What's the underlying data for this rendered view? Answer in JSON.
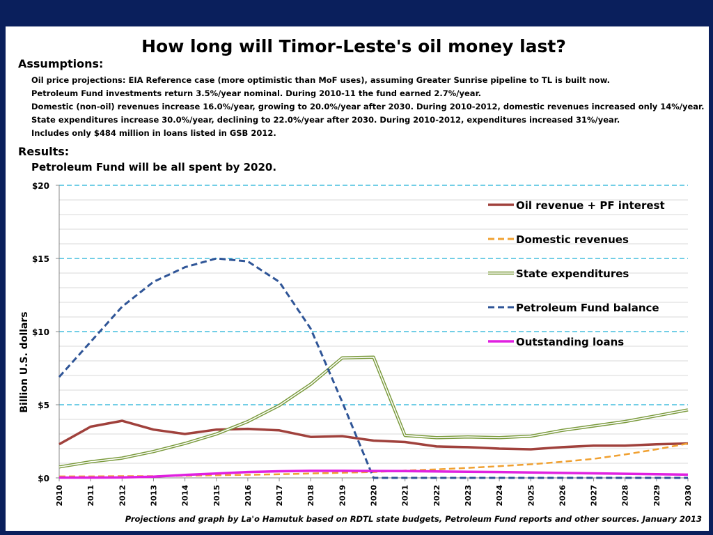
{
  "slide": {
    "title": "How long will Timor-Leste's oil money last?",
    "assumptions_heading": "Assumptions:",
    "assumptions": [
      "Oil price projections: EIA Reference case (more optimistic than MoF uses), assuming Greater Sunrise pipeline to TL is built now.",
      "Petroleum Fund investments return 3.5%/year nominal.  During 2010-11 the fund earned 2.7%/year.",
      "Domestic (non-oil) revenues increase 16.0%/year, growing to 20.0%/year after 2030.  During 2010-2012, domestic revenues increased only 14%/year.",
      "State expenditures increase 30.0%/year, declining to 22.0%/year after 2030. During 2010-2012, expenditures increased 31%/year.",
      "Includes only $484 million in loans listed in GSB 2012."
    ],
    "results_heading": "Results:",
    "result_statement": "Petroleum Fund will be all spent by 2020.",
    "credit": "Projections and graph by La'o Hamutuk based on RDTL state budgets, Petroleum Fund reports and other sources.   January 2013"
  },
  "chart_data": {
    "type": "line",
    "ylabel": "Billion U.S. dollars",
    "ylim": [
      0,
      20
    ],
    "yticks": [
      0,
      5,
      10,
      15,
      20
    ],
    "ytick_labels": [
      "$0",
      "$5",
      "$10",
      "$15",
      "$20"
    ],
    "legend_position": "right",
    "x": [
      "2010",
      "2011",
      "2012",
      "2013",
      "2014",
      "2015",
      "2016",
      "2017",
      "2018",
      "2019",
      "2020",
      "2021",
      "2022",
      "2023",
      "2024",
      "2025",
      "2026",
      "2027",
      "2028",
      "2029",
      "2030"
    ],
    "series": [
      {
        "name": "Oil revenue + PF interest",
        "color": "#a0413c",
        "style": "solid",
        "values": [
          2.3,
          3.5,
          3.9,
          3.3,
          3.0,
          3.3,
          3.35,
          3.25,
          2.8,
          2.85,
          2.55,
          2.45,
          2.15,
          2.1,
          2.0,
          1.95,
          2.1,
          2.2,
          2.2,
          2.3,
          2.35
        ]
      },
      {
        "name": "Domestic revenues",
        "color": "#f0a030",
        "style": "dashed",
        "values": [
          0.1,
          0.1,
          0.12,
          0.12,
          0.15,
          0.18,
          0.21,
          0.25,
          0.3,
          0.35,
          0.4,
          0.5,
          0.58,
          0.68,
          0.8,
          0.93,
          1.1,
          1.3,
          1.6,
          1.95,
          2.35
        ]
      },
      {
        "name": "State expenditures",
        "color": "#7a9a3c",
        "style": "double",
        "values": [
          0.75,
          1.1,
          1.35,
          1.8,
          2.35,
          3.0,
          3.85,
          4.95,
          6.4,
          8.2,
          8.25,
          2.9,
          2.75,
          2.8,
          2.75,
          2.85,
          3.25,
          3.55,
          3.85,
          4.25,
          4.65
        ]
      },
      {
        "name": "Petroleum Fund  balance",
        "color": "#2f5597",
        "style": "dashed",
        "values": [
          6.9,
          9.3,
          11.7,
          13.4,
          14.4,
          15.0,
          14.8,
          13.4,
          10.2,
          5.2,
          0.0,
          0.0,
          0.0,
          0.0,
          0.0,
          0.0,
          0.0,
          0.0,
          0.0,
          0.0,
          0.0
        ]
      },
      {
        "name": "Outstanding loans",
        "color": "#e020e0",
        "style": "solid",
        "values": [
          0.02,
          0.02,
          0.03,
          0.08,
          0.2,
          0.3,
          0.4,
          0.45,
          0.48,
          0.48,
          0.47,
          0.46,
          0.44,
          0.42,
          0.4,
          0.37,
          0.34,
          0.31,
          0.28,
          0.25,
          0.22
        ]
      }
    ]
  }
}
